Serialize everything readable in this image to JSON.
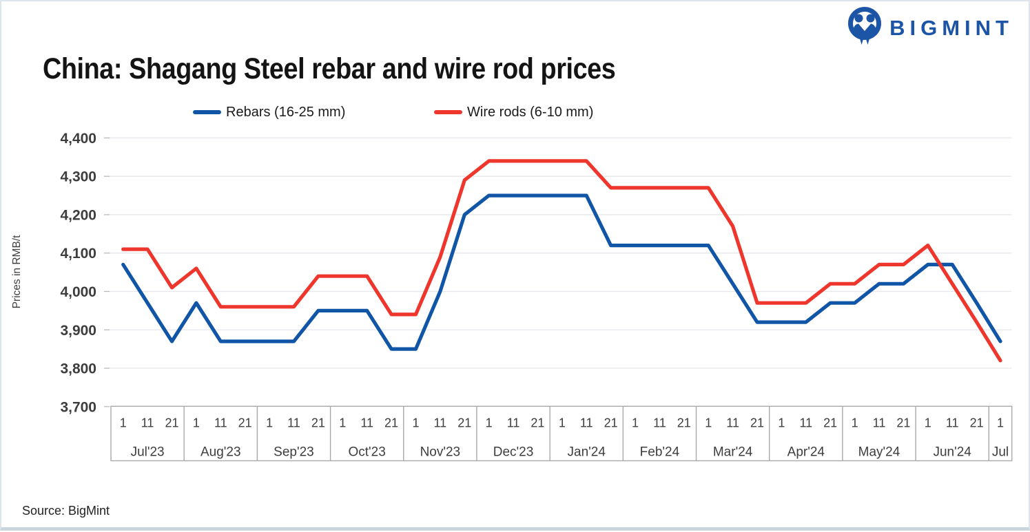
{
  "title": "China: Shagang Steel rebar and wire rod prices",
  "logo": {
    "text": "BIGMINT",
    "icon": "bigmint-people-icon",
    "color": "#1d55a6"
  },
  "legend": [
    {
      "label": "Rebars (16-25 mm)",
      "color": "#1156A6"
    },
    {
      "label": "Wire rods (6-10 mm)",
      "color": "#EE362C"
    }
  ],
  "y_axis": {
    "title": "Prices in RMB/t",
    "ticks": [
      "4,400",
      "4,300",
      "4,200",
      "4,100",
      "4,000",
      "3,900",
      "3,800",
      "3,700"
    ]
  },
  "source": "Source: BigMint",
  "colors": {
    "rebars_line": "#1156A6",
    "wire_rods_line": "#EE362C",
    "gridline": "#e4e7eb",
    "axis_border": "#a9a9a9",
    "axis_text": "#3d3d3d"
  },
  "chart_data": {
    "type": "line",
    "title": "China: Shagang Steel rebar and wire rod prices",
    "ylabel": "Prices in RMB/t",
    "ylim": [
      3700,
      4400
    ],
    "y_step": 100,
    "grid": true,
    "legend_position": "top",
    "x_months": [
      {
        "label": "Jul'23",
        "days": [
          "1",
          "11",
          "21"
        ]
      },
      {
        "label": "Aug'23",
        "days": [
          "1",
          "11",
          "21"
        ]
      },
      {
        "label": "Sep'23",
        "days": [
          "1",
          "11",
          "21"
        ]
      },
      {
        "label": "Oct'23",
        "days": [
          "1",
          "11",
          "21"
        ]
      },
      {
        "label": "Nov'23",
        "days": [
          "1",
          "11",
          "21"
        ]
      },
      {
        "label": "Dec'23",
        "days": [
          "1",
          "11",
          "21"
        ]
      },
      {
        "label": "Jan'24",
        "days": [
          "1",
          "11",
          "21"
        ]
      },
      {
        "label": "Feb'24",
        "days": [
          "1",
          "11",
          "21"
        ]
      },
      {
        "label": "Mar'24",
        "days": [
          "1",
          "11",
          "21"
        ]
      },
      {
        "label": "Apr'24",
        "days": [
          "1",
          "11",
          "21"
        ]
      },
      {
        "label": "May'24",
        "days": [
          "1",
          "11",
          "21"
        ]
      },
      {
        "label": "Jun'24",
        "days": [
          "1",
          "11",
          "21"
        ]
      },
      {
        "label": "Jul",
        "days": [
          "1"
        ]
      }
    ],
    "series": [
      {
        "name": "Rebars (16-25 mm)",
        "color": "#1156A6",
        "values": [
          4070,
          3970,
          3870,
          3970,
          3870,
          3870,
          3870,
          3870,
          3950,
          3950,
          3950,
          3850,
          3850,
          4000,
          4200,
          4250,
          4250,
          4250,
          4250,
          4250,
          4120,
          4120,
          4120,
          4120,
          4120,
          4020,
          3920,
          3920,
          3920,
          3970,
          3970,
          4020,
          4020,
          4070,
          4070,
          3970,
          3870
        ]
      },
      {
        "name": "Wire rods (6-10 mm)",
        "color": "#EE362C",
        "values": [
          4110,
          4110,
          4010,
          4060,
          3960,
          3960,
          3960,
          3960,
          4040,
          4040,
          4040,
          3940,
          3940,
          4090,
          4290,
          4340,
          4340,
          4340,
          4340,
          4340,
          4270,
          4270,
          4270,
          4270,
          4270,
          4170,
          3970,
          3970,
          3970,
          4020,
          4020,
          4070,
          4070,
          4120,
          4020,
          3920,
          3820
        ]
      }
    ]
  }
}
